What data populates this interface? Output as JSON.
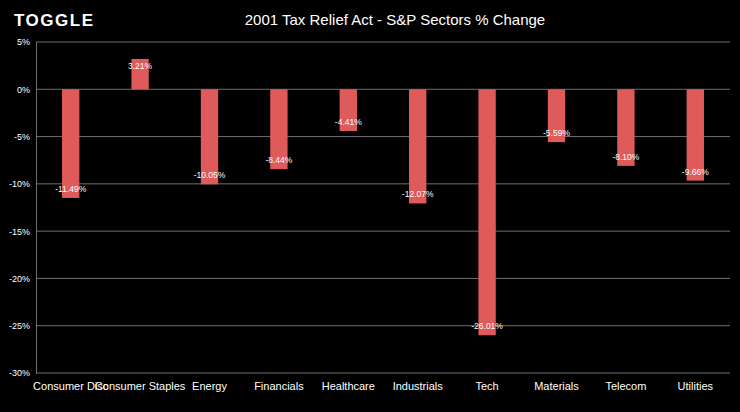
{
  "chart_data": {
    "type": "bar",
    "title": "2001 Tax Relief Act - S&P Sectors % Change",
    "annotations": [
      "TOGGLE"
    ],
    "categories": [
      "Consumer Disc",
      "Consumer Staples",
      "Energy",
      "Financials",
      "Healthcare",
      "Industrials",
      "Tech",
      "Materials",
      "Telecom",
      "Utilities"
    ],
    "values": [
      -11.49,
      3.21,
      -10.05,
      -8.44,
      -4.41,
      -12.07,
      -26.01,
      -5.59,
      -8.1,
      -9.66
    ],
    "value_labels": [
      "-11.49%",
      "3.21%",
      "-10.05%",
      "-8.44%",
      "-4.41%",
      "-12.07%",
      "-26.01%",
      "-5.59%",
      "-8.10%",
      "-9.66%"
    ],
    "color": "#df5a5a",
    "ylim": [
      -30,
      5
    ],
    "yticks": [
      {
        "value": -30,
        "label": "-30%"
      },
      {
        "value": -25,
        "label": "-25%"
      },
      {
        "value": -20,
        "label": "-20%"
      },
      {
        "value": -15,
        "label": "-15%"
      },
      {
        "value": -10,
        "label": "-10%"
      },
      {
        "value": -5,
        "label": "-5%"
      },
      {
        "value": 0,
        "label": "0%"
      },
      {
        "value": 5,
        "label": "5%"
      }
    ],
    "grid": true,
    "data_labels": true
  }
}
